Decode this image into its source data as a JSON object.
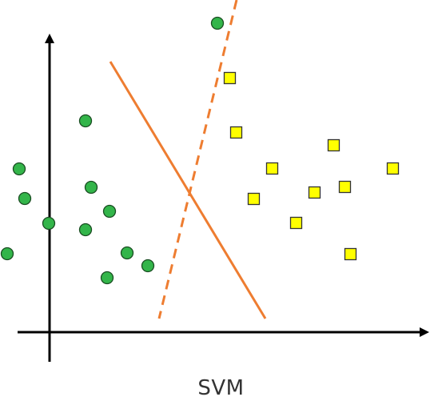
{
  "caption": "SVM",
  "colors": {
    "axis": "#000000",
    "class_a_fill": "#33b54a",
    "class_a_stroke": "#1a4d22",
    "class_b_fill": "#ffff00",
    "class_b_stroke": "#333333",
    "boundary": "#ee7d31"
  },
  "icons": {
    "class_a_marker": "circle",
    "class_b_marker": "square"
  }
}
